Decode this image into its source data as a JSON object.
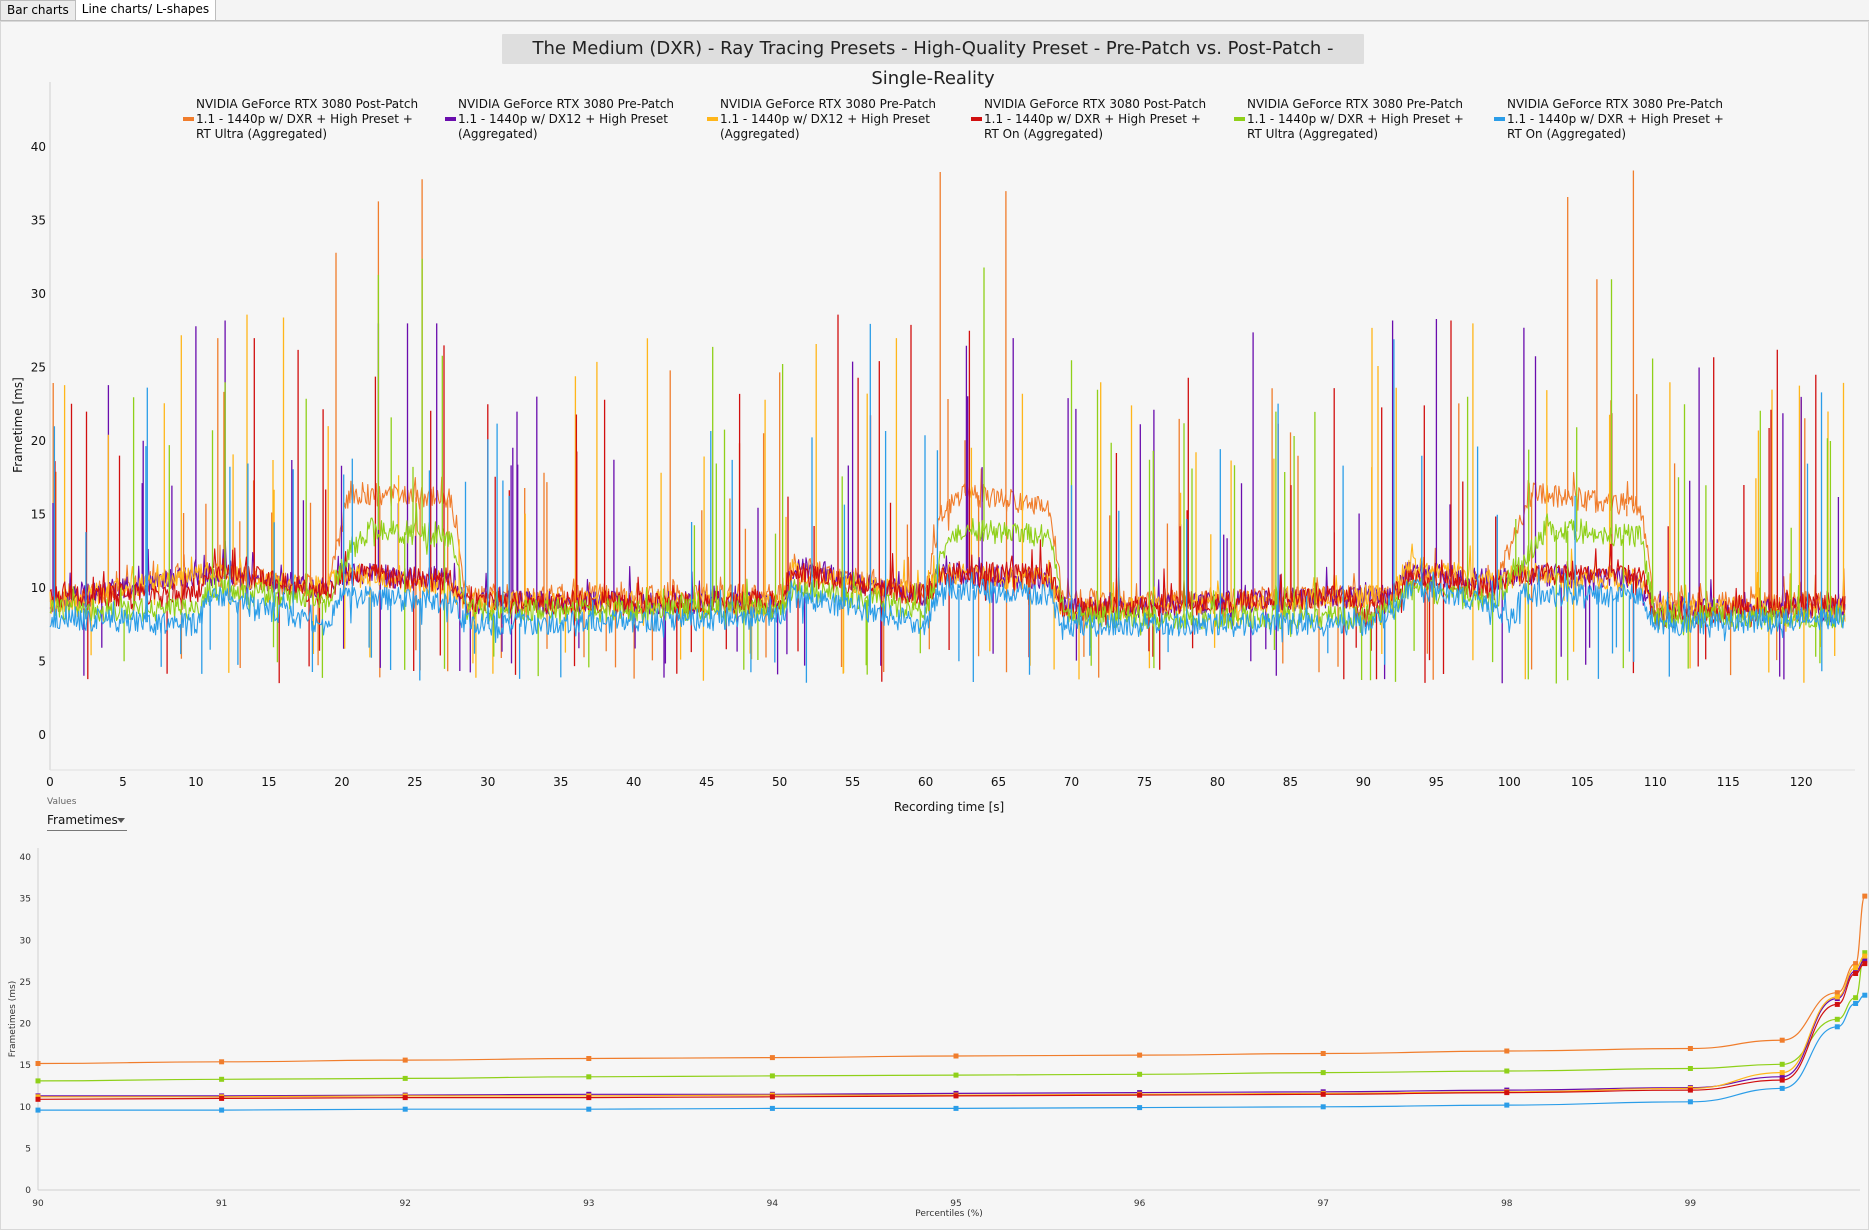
{
  "tabs": [
    {
      "label": "Bar charts",
      "active": false
    },
    {
      "label": "Line charts/ L-shapes",
      "active": true
    }
  ],
  "values_control": {
    "label": "Values",
    "selected": "Frametimes"
  },
  "colors": {
    "orange": "#f07d2c",
    "purple": "#6a0dad",
    "yellow": "#ffb61a",
    "red": "#d10f0f",
    "green": "#8fd019",
    "blue": "#2b9de8"
  },
  "chart_data": [
    {
      "type": "line",
      "title": "The Medium (DXR) -  Ray Tracing Presets - High-Quality Preset - Pre-Patch vs. Post-Patch - Single-Reality",
      "xlabel": "Recording time [s]",
      "ylabel": "Frametime [ms]",
      "xlim": [
        0,
        123
      ],
      "ylim": [
        -3,
        45
      ],
      "xticks": [
        0,
        5,
        10,
        15,
        20,
        25,
        30,
        35,
        40,
        45,
        50,
        55,
        60,
        65,
        70,
        75,
        80,
        85,
        90,
        95,
        100,
        105,
        110,
        115,
        120
      ],
      "yticks": [
        0,
        5,
        10,
        15,
        20,
        25,
        30,
        35,
        40
      ],
      "grid": false,
      "legend_position": "top",
      "series": [
        {
          "name": "NVIDIA GeForce RTX 3080 Post-Patch 1.1 - 1440p w/ DXR + High Preset + RT Ultra (Aggregated)",
          "color": "#f07d2c",
          "segments": [
            [
              0,
              9
            ],
            [
              10,
              11
            ],
            [
              19,
              10
            ],
            [
              20.5,
              16.5
            ],
            [
              27.5,
              16
            ],
            [
              28.5,
              9.5
            ],
            [
              50,
              9.5
            ],
            [
              51,
              11.5
            ],
            [
              60,
              9.5
            ],
            [
              61,
              15
            ],
            [
              62.5,
              16.5
            ],
            [
              68.5,
              15.5
            ],
            [
              69.5,
              9
            ],
            [
              92,
              9.5
            ],
            [
              92.8,
              11
            ],
            [
              99,
              10
            ],
            [
              101.5,
              16.5
            ],
            [
              109,
              15.5
            ],
            [
              110,
              9
            ],
            [
              123,
              9
            ]
          ],
          "spikes": [
            [
              11.5,
              27
            ],
            [
              19.6,
              32.8
            ],
            [
              22.5,
              36.3
            ],
            [
              25.5,
              37.8
            ],
            [
              42.5,
              24.8
            ],
            [
              61,
              38.3
            ],
            [
              65.5,
              37
            ],
            [
              104,
              36.6
            ],
            [
              106,
              31
            ],
            [
              108.5,
              38.4
            ],
            [
              120,
              22.8
            ]
          ]
        },
        {
          "name": "NVIDIA GeForce RTX 3080 Pre-Patch 1.1 - 1440p w/ DX12 + High Preset (Aggregated)",
          "color": "#6a0dad",
          "segments": [
            [
              0,
              9
            ],
            [
              10.5,
              11
            ],
            [
              19,
              10
            ],
            [
              20,
              11
            ],
            [
              27.5,
              10.5
            ],
            [
              28.5,
              9
            ],
            [
              50,
              9
            ],
            [
              51,
              11.5
            ],
            [
              60,
              9.5
            ],
            [
              61,
              11
            ],
            [
              68.5,
              10.5
            ],
            [
              69.5,
              8.5
            ],
            [
              92,
              9.5
            ],
            [
              93,
              11
            ],
            [
              99,
              10.5
            ],
            [
              101,
              11
            ],
            [
              109,
              10.5
            ],
            [
              110,
              8.5
            ],
            [
              123,
              8.5
            ]
          ],
          "spikes": [
            [
              4,
              23.8
            ],
            [
              10,
              27.8
            ],
            [
              12,
              28.2
            ],
            [
              22.5,
              28
            ],
            [
              24.5,
              28
            ],
            [
              26.5,
              28
            ],
            [
              32,
              22
            ],
            [
              55,
              25.4
            ],
            [
              66,
              27
            ],
            [
              92,
              28.2
            ],
            [
              95,
              28.3
            ],
            [
              101,
              27.7
            ],
            [
              113,
              25
            ],
            [
              120,
              23
            ]
          ]
        },
        {
          "name": "NVIDIA GeForce RTX 3080 Pre-Patch 1.1 - 1440p w/ DX12 + High Preset (Aggregated)",
          "color": "#ffb61a",
          "segments": [
            [
              0,
              9
            ],
            [
              10.5,
              11
            ],
            [
              19,
              10
            ],
            [
              20,
              11
            ],
            [
              27.5,
              10
            ],
            [
              28.5,
              9
            ],
            [
              50,
              9
            ],
            [
              51,
              11
            ],
            [
              60,
              9.5
            ],
            [
              61,
              11
            ],
            [
              68.5,
              10.5
            ],
            [
              69.5,
              8.5
            ],
            [
              92,
              9.5
            ],
            [
              93,
              11.5
            ],
            [
              99,
              10.5
            ],
            [
              101,
              11
            ],
            [
              109,
              10.5
            ],
            [
              110,
              8.5
            ],
            [
              123,
              8.5
            ]
          ],
          "spikes": [
            [
              1,
              23.8
            ],
            [
              9,
              27.2
            ],
            [
              13.5,
              28.6
            ],
            [
              16,
              28.4
            ],
            [
              36,
              24.4
            ],
            [
              49,
              22.8
            ],
            [
              52.5,
              26.6
            ],
            [
              58,
              27
            ],
            [
              72,
              24
            ],
            [
              91,
              25.1
            ],
            [
              97.5,
              28
            ],
            [
              111,
              24
            ],
            [
              118,
              23.5
            ]
          ]
        },
        {
          "name": "NVIDIA GeForce RTX 3080 Post-Patch 1.1 - 1440p w/ DXR + High Preset + RT On (Aggregated)",
          "color": "#d10f0f",
          "segments": [
            [
              0,
              9.5
            ],
            [
              10,
              9.5
            ],
            [
              11,
              11.5
            ],
            [
              19,
              9.5
            ],
            [
              20,
              11
            ],
            [
              27.5,
              10.5
            ],
            [
              28.5,
              9
            ],
            [
              50,
              9
            ],
            [
              51,
              11
            ],
            [
              60,
              9.5
            ],
            [
              61,
              11
            ],
            [
              68.5,
              11
            ],
            [
              69.5,
              8.5
            ],
            [
              89,
              9.5
            ],
            [
              90,
              8
            ],
            [
              92,
              9.5
            ],
            [
              93,
              10.5
            ],
            [
              99,
              10
            ],
            [
              100.5,
              11
            ],
            [
              109,
              11
            ],
            [
              110,
              8
            ],
            [
              123,
              9
            ]
          ],
          "spikes": [
            [
              2.5,
              22
            ],
            [
              14,
              27
            ],
            [
              17,
              26.2
            ],
            [
              27,
              26.5
            ],
            [
              30,
              22.5
            ],
            [
              38,
              22.8
            ],
            [
              54,
              28.6
            ],
            [
              59,
              27.9
            ],
            [
              63,
              27.5
            ],
            [
              78,
              24.3
            ],
            [
              88,
              23.6
            ],
            [
              96,
              28.2
            ],
            [
              114,
              25.7
            ],
            [
              121,
              24.5
            ]
          ]
        },
        {
          "name": "NVIDIA GeForce RTX 3080 Pre-Patch 1.1 - 1440p w/ DXR + High Preset + RT Ultra (Aggregated)",
          "color": "#8fd019",
          "segments": [
            [
              0,
              8.5
            ],
            [
              10,
              8.5
            ],
            [
              11,
              10
            ],
            [
              19,
              9
            ],
            [
              20.5,
              12.5
            ],
            [
              22,
              14
            ],
            [
              27.5,
              13.5
            ],
            [
              28.5,
              8.5
            ],
            [
              50,
              8.5
            ],
            [
              51,
              10
            ],
            [
              60,
              8.5
            ],
            [
              61,
              12
            ],
            [
              62.5,
              14
            ],
            [
              68.5,
              13.5
            ],
            [
              69.5,
              8
            ],
            [
              90,
              8
            ],
            [
              92,
              8.5
            ],
            [
              93,
              10
            ],
            [
              99,
              9
            ],
            [
              101,
              12
            ],
            [
              102.5,
              14
            ],
            [
              109,
              13.5
            ],
            [
              110,
              8
            ],
            [
              123,
              8
            ]
          ],
          "spikes": [
            [
              12,
              24
            ],
            [
              22.5,
              31.3
            ],
            [
              25.5,
              32.4
            ],
            [
              64,
              31.8
            ],
            [
              70,
              25.5
            ],
            [
              84,
              22
            ],
            [
              107,
              31
            ],
            [
              112,
              22.5
            ],
            [
              122,
              20
            ]
          ]
        },
        {
          "name": "NVIDIA GeForce RTX 3080 Pre-Patch 1.1 - 1440p w/ DXR + High Preset + RT On (Aggregated)",
          "color": "#2b9de8",
          "segments": [
            [
              0,
              8
            ],
            [
              10,
              7.5
            ],
            [
              11,
              9.5
            ],
            [
              19,
              7.5
            ],
            [
              20,
              9.5
            ],
            [
              27.5,
              9
            ],
            [
              28.5,
              7.5
            ],
            [
              50,
              8
            ],
            [
              51,
              9.5
            ],
            [
              60,
              7.5
            ],
            [
              61,
              10
            ],
            [
              68.5,
              9.5
            ],
            [
              69.5,
              7.5
            ],
            [
              90,
              7.5
            ],
            [
              92,
              8.5
            ],
            [
              93,
              10
            ],
            [
              99,
              9
            ],
            [
              100,
              7.5
            ],
            [
              101,
              9.5
            ],
            [
              109,
              9.5
            ],
            [
              110,
              7.5
            ],
            [
              123,
              8
            ]
          ],
          "spikes": [
            [
              0.3,
              21
            ],
            [
              26,
              18
            ],
            [
              70,
              17
            ],
            [
              94,
              19
            ]
          ]
        }
      ]
    },
    {
      "type": "line",
      "title": "",
      "xlabel": "Percentiles (%)",
      "ylabel": "Frametimes (ms)",
      "xlim": [
        90,
        100
      ],
      "ylim": [
        0,
        40
      ],
      "xticks": [
        90,
        91,
        92,
        93,
        94,
        95,
        96,
        97,
        98,
        99
      ],
      "yticks": [
        0,
        5,
        10,
        15,
        20,
        25,
        30,
        35,
        40
      ],
      "x": [
        90,
        91,
        92,
        93,
        94,
        95,
        96,
        97,
        98,
        99,
        99.5,
        99.8,
        99.9,
        99.95
      ],
      "series": [
        {
          "color": "#f07d2c",
          "values": [
            15.2,
            15.4,
            15.6,
            15.8,
            15.9,
            16.1,
            16.2,
            16.4,
            16.7,
            17.0,
            18.0,
            23.7,
            27.2,
            35.3
          ]
        },
        {
          "color": "#8fd019",
          "values": [
            13.1,
            13.3,
            13.4,
            13.6,
            13.7,
            13.8,
            13.9,
            14.1,
            14.3,
            14.6,
            15.1,
            20.5,
            23.1,
            28.5
          ]
        },
        {
          "color": "#6a0dad",
          "values": [
            11.3,
            11.3,
            11.4,
            11.5,
            11.5,
            11.6,
            11.7,
            11.8,
            12.0,
            12.3,
            13.6,
            23.0,
            26.3,
            27.6
          ]
        },
        {
          "color": "#ffb61a",
          "values": [
            11.2,
            11.2,
            11.3,
            11.3,
            11.4,
            11.4,
            11.5,
            11.6,
            11.8,
            12.2,
            14.1,
            23.2,
            26.7,
            28.1
          ]
        },
        {
          "color": "#d10f0f",
          "values": [
            10.9,
            11.0,
            11.1,
            11.1,
            11.2,
            11.3,
            11.4,
            11.5,
            11.7,
            12.0,
            13.2,
            22.3,
            26.0,
            27.2
          ]
        },
        {
          "color": "#2b9de8",
          "values": [
            9.6,
            9.6,
            9.7,
            9.7,
            9.8,
            9.8,
            9.9,
            10.0,
            10.2,
            10.6,
            12.2,
            19.6,
            22.4,
            23.4
          ]
        }
      ]
    }
  ]
}
